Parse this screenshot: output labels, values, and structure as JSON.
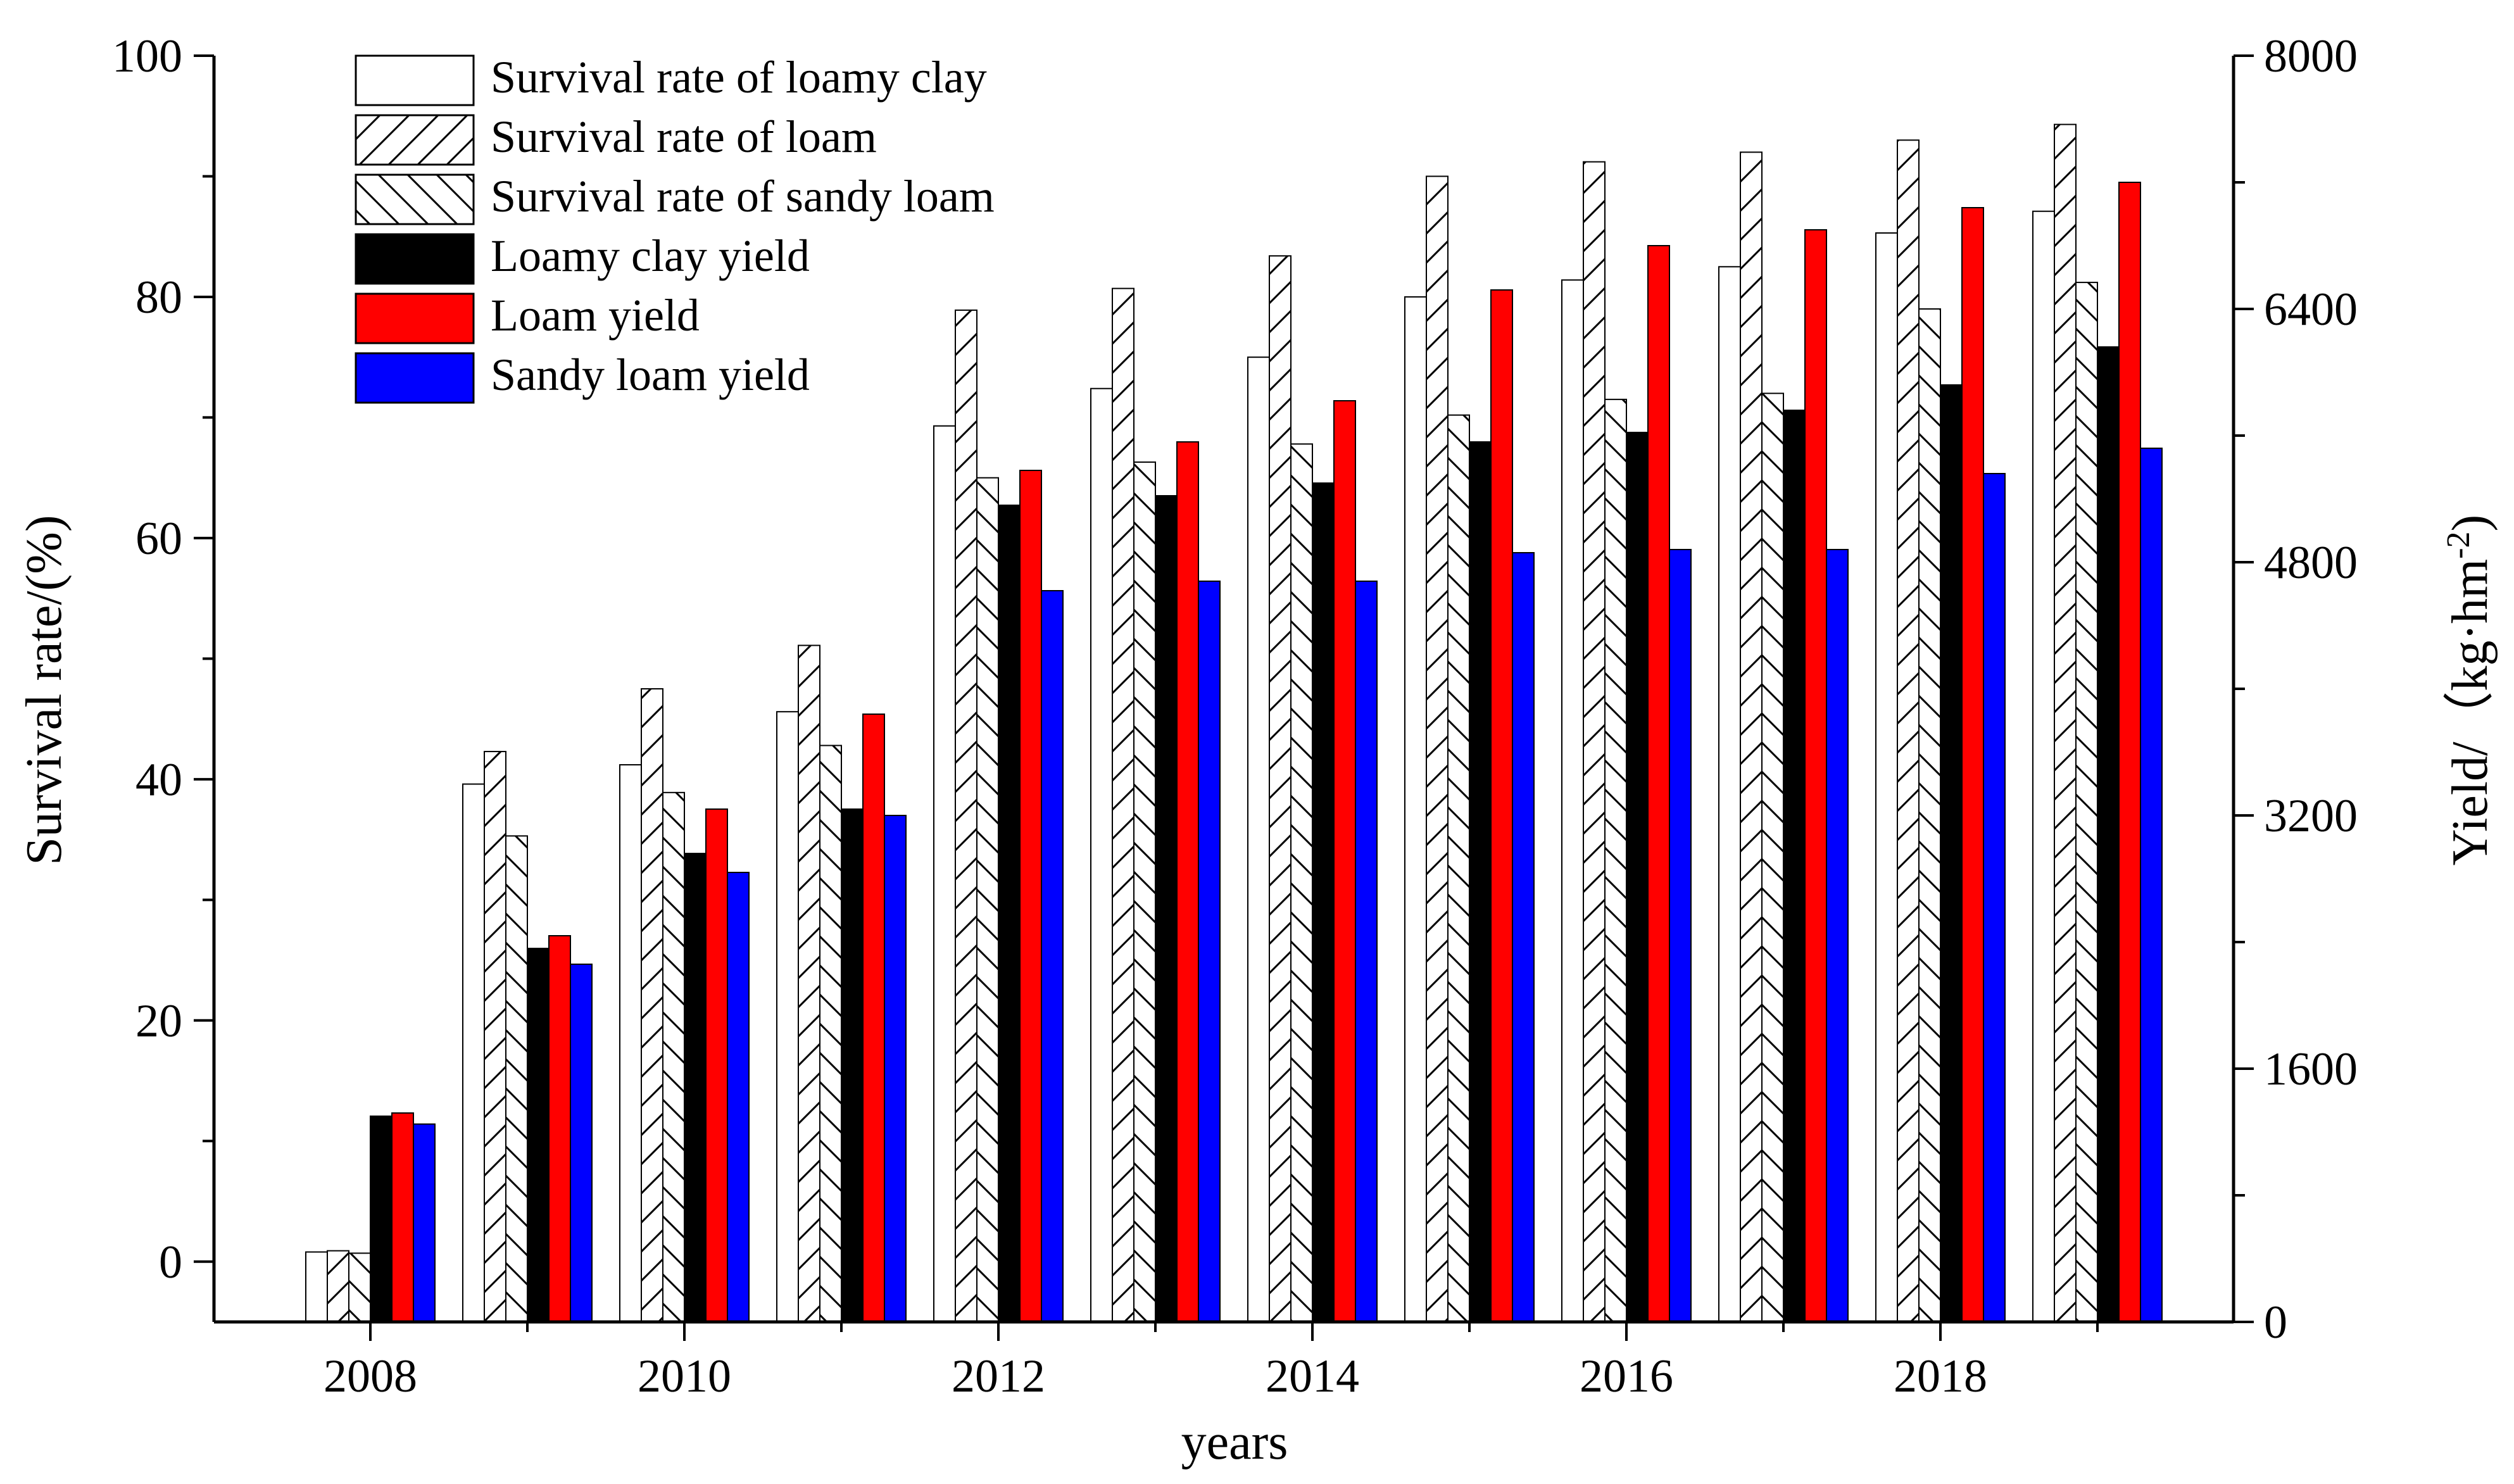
{
  "chart_data": {
    "type": "bar",
    "categories": [
      "2008",
      "2009",
      "2010",
      "2011",
      "2012",
      "2013",
      "2014",
      "2015",
      "2016",
      "2017",
      "2018",
      "2019"
    ],
    "x_tick_labels": [
      "2008",
      "2010",
      "2012",
      "2014",
      "2016",
      "2018"
    ],
    "xlabel": "years",
    "ylabel": "Survival rate/(%)",
    "ylabel_right": {
      "prefix": "Yield/（kg·hm",
      "sup": "-2",
      "suffix": ")"
    },
    "ylim": [
      -5,
      100
    ],
    "yticks": [
      0,
      20,
      40,
      60,
      80,
      100
    ],
    "y2lim": [
      0,
      8000
    ],
    "y2ticks": [
      0,
      1600,
      3200,
      4800,
      6400,
      8000
    ],
    "series": [
      {
        "name": "Survival rate of loamy clay",
        "axis": "left",
        "fill": "#ffffff",
        "pattern": "none",
        "values": [
          0.8,
          39.6,
          41.2,
          45.6,
          69.3,
          72.4,
          75.0,
          80.0,
          81.4,
          82.5,
          85.3,
          87.1
        ]
      },
      {
        "name": "Survival rate of loam",
        "axis": "left",
        "fill": "#ffffff",
        "pattern": "forward",
        "values": [
          0.9,
          42.3,
          47.5,
          51.1,
          78.9,
          80.7,
          83.4,
          90.0,
          91.2,
          92.0,
          93.0,
          94.3
        ]
      },
      {
        "name": "Survival rate of sandy loam",
        "axis": "left",
        "fill": "#ffffff",
        "pattern": "backward",
        "values": [
          0.7,
          35.3,
          38.9,
          42.8,
          65.0,
          66.3,
          67.8,
          70.2,
          71.5,
          72.0,
          79.0,
          81.2
        ]
      },
      {
        "name": "Loamy clay yield",
        "axis": "right",
        "fill": "#000000",
        "pattern": "solid",
        "values": [
          1300,
          2360,
          2960,
          3240,
          5160,
          5220,
          5300,
          5560,
          5620,
          5760,
          5920,
          6160
        ]
      },
      {
        "name": "Loam yield",
        "axis": "right",
        "fill": "#ff0000",
        "pattern": "solid",
        "values": [
          1320,
          2440,
          3240,
          3840,
          5380,
          5560,
          5820,
          6520,
          6800,
          6900,
          7040,
          7200
        ]
      },
      {
        "name": "Sandy loam yield",
        "axis": "right",
        "fill": "#0000ff",
        "pattern": "solid",
        "values": [
          1250,
          2260,
          2840,
          3200,
          4620,
          4680,
          4680,
          4860,
          4880,
          4880,
          5360,
          5520
        ]
      }
    ],
    "legend_position": "top-left",
    "grid": false
  }
}
